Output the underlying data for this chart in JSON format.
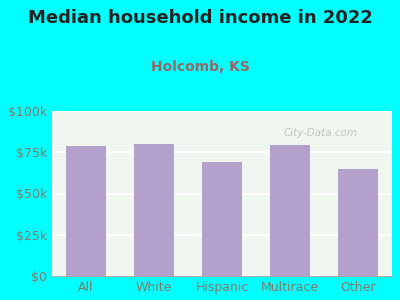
{
  "title": "Median household income in 2022",
  "subtitle": "Holcomb, KS",
  "categories": [
    "All",
    "White",
    "Hispanic",
    "Multirace",
    "Other"
  ],
  "values": [
    79000,
    80000,
    69000,
    79500,
    65000
  ],
  "bar_color": "#b3a0cc",
  "background_color": "#00ffff",
  "plot_bg_color": "#f0f7ee",
  "title_color": "#222222",
  "subtitle_color": "#996666",
  "tick_label_color": "#887766",
  "ylim": [
    0,
    100000
  ],
  "yticks": [
    0,
    25000,
    50000,
    75000,
    100000
  ],
  "ytick_labels": [
    "$0",
    "$25k",
    "$50k",
    "$75k",
    "$100k"
  ],
  "watermark": "City-Data.com",
  "title_fontsize": 13,
  "subtitle_fontsize": 10,
  "tick_fontsize": 9
}
